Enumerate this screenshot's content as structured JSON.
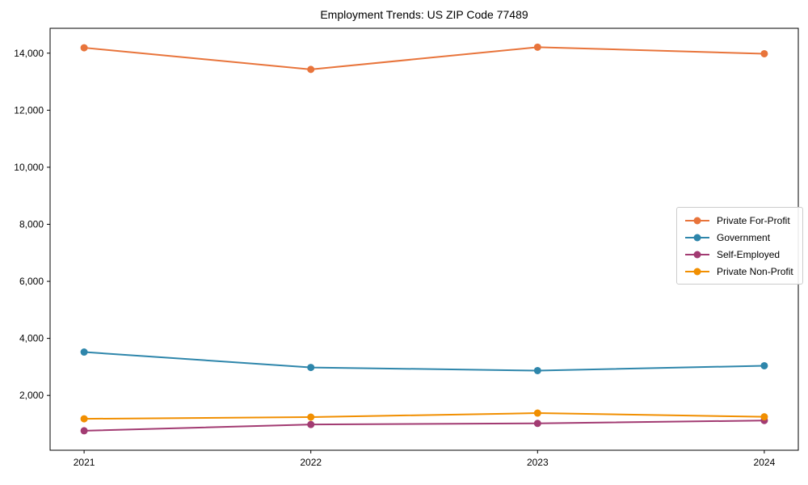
{
  "figure": {
    "background": "#ffffff",
    "axis_color": "#000000",
    "tick_label_color": "#000000",
    "legend_border_color": "#cccccc"
  },
  "chart_data": {
    "type": "line",
    "title": "Employment Trends: US ZIP Code 77489",
    "xlabel": "",
    "ylabel": "",
    "x_categories": [
      "2021",
      "2022",
      "2023",
      "2024"
    ],
    "series": [
      {
        "name": "Private For-Profit",
        "color": "#E8743B",
        "values": [
          14190,
          13430,
          14210,
          13980
        ]
      },
      {
        "name": "Government",
        "color": "#2E86AB",
        "values": [
          3520,
          2980,
          2870,
          3040
        ]
      },
      {
        "name": "Self-Employed",
        "color": "#A23B72",
        "values": [
          760,
          980,
          1020,
          1120
        ]
      },
      {
        "name": "Private Non-Profit",
        "color": "#F18F01",
        "values": [
          1180,
          1240,
          1380,
          1250
        ]
      }
    ],
    "ylim": [
      78,
      14872
    ],
    "yticks": [
      {
        "value": 2000,
        "label": "2,000"
      },
      {
        "value": 4000,
        "label": "4,000"
      },
      {
        "value": 6000,
        "label": "6,000"
      },
      {
        "value": 8000,
        "label": "8,000"
      },
      {
        "value": 10000,
        "label": "10,000"
      },
      {
        "value": 12000,
        "label": "12,000"
      },
      {
        "value": 14000,
        "label": "14,000"
      }
    ],
    "grid": false,
    "marker": "circle",
    "line_width": 2,
    "marker_radius": 4.5,
    "legend_position": "center-right"
  }
}
